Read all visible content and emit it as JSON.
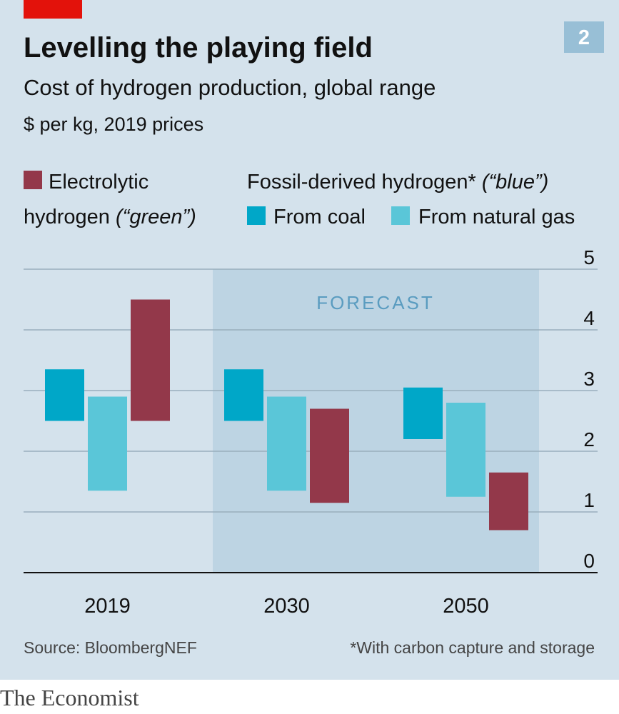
{
  "colors": {
    "background": "#d4e2ec",
    "forecast_band": "#bdd4e3",
    "green": "#93384a",
    "coal": "#00a7c8",
    "gas": "#5ac6d8",
    "accent_red": "#e3120b",
    "badge": "#98bfd6"
  },
  "chart_data": {
    "type": "bar",
    "title": "Levelling the playing field",
    "subtitle": "Cost of hydrogen production, global range",
    "units": "$ per kg, 2019 prices",
    "chart_number": "2",
    "categories": [
      "2019",
      "2030",
      "2050"
    ],
    "forecast_label": "FORECAST",
    "forecast_categories": [
      "2030",
      "2050"
    ],
    "legend": {
      "green_line1": "Electrolytic",
      "green_line2_prefix": "hydrogen ",
      "green_line2_italic": "(“green”)",
      "blue_header_prefix": "Fossil-derived hydrogen* ",
      "blue_header_italic": "(“blue”)",
      "coal": "From coal",
      "gas": "From natural gas"
    },
    "series": [
      {
        "key": "coal",
        "name": "From coal",
        "low": [
          2.5,
          2.5,
          2.2
        ],
        "high": [
          3.35,
          3.35,
          3.05
        ]
      },
      {
        "key": "gas",
        "name": "From natural gas",
        "low": [
          1.35,
          1.35,
          1.25
        ],
        "high": [
          2.9,
          2.9,
          2.8
        ]
      },
      {
        "key": "green",
        "name": "Electrolytic hydrogen",
        "low": [
          2.5,
          1.15,
          0.7
        ],
        "high": [
          4.5,
          2.7,
          1.65
        ]
      }
    ],
    "ylim": [
      0,
      5
    ],
    "yticks": [
      "0",
      "1",
      "2",
      "3",
      "4",
      "5"
    ],
    "grid": true,
    "source": "Source: BloombergNEF",
    "footnote": "*With carbon capture and storage"
  },
  "brand": "The Economist"
}
